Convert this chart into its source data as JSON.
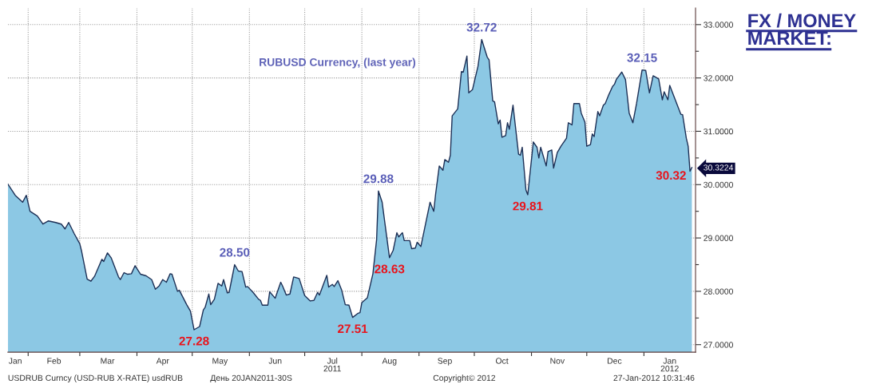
{
  "chart_data": {
    "type": "area",
    "title": "FX / MONEY\nMARKET:",
    "subtitle": "RUBUSD Currency, (last year)",
    "x": [
      "2011-01-21",
      "2011-01-25",
      "2011-01-29",
      "2011-01-31",
      "2011-02-02",
      "2011-02-06",
      "2011-02-09",
      "2011-02-12",
      "2011-02-16",
      "2011-02-19",
      "2011-02-21",
      "2011-02-23",
      "2011-02-26",
      "2011-03-01",
      "2011-03-02",
      "2011-03-05",
      "2011-03-07",
      "2011-03-09",
      "2011-03-13",
      "2011-03-14",
      "2011-03-16",
      "2011-03-18",
      "2011-03-22",
      "2011-03-23",
      "2011-03-25",
      "2011-03-27",
      "2011-03-29",
      "2011-03-31",
      "2011-04-03",
      "2011-04-06",
      "2011-04-09",
      "2011-04-11",
      "2011-04-13",
      "2011-04-15",
      "2011-04-17",
      "2011-04-19",
      "2011-04-20",
      "2011-04-23",
      "2011-04-24",
      "2011-04-28",
      "2011-04-30",
      "2011-05-02",
      "2011-05-05",
      "2011-05-07",
      "2011-05-08",
      "2011-05-10",
      "2011-05-11",
      "2011-05-13",
      "2011-05-15",
      "2011-05-17",
      "2011-05-18",
      "2011-05-20",
      "2011-05-21",
      "2011-05-24",
      "2011-05-26",
      "2011-05-28",
      "2011-05-30",
      "2011-05-31",
      "2011-06-03",
      "2011-06-06",
      "2011-06-07",
      "2011-06-08",
      "2011-06-11",
      "2011-06-12",
      "2011-06-15",
      "2011-06-18",
      "2011-06-19",
      "2011-06-21",
      "2011-06-23",
      "2011-06-25",
      "2011-06-28",
      "2011-07-01",
      "2011-07-04",
      "2011-07-06",
      "2011-07-08",
      "2011-07-09",
      "2011-07-13",
      "2011-07-14",
      "2011-07-16",
      "2011-07-17",
      "2011-07-19",
      "2011-07-21",
      "2011-07-23",
      "2011-07-25",
      "2011-07-27",
      "2011-07-30",
      "2011-07-31",
      "2011-08-01",
      "2011-08-04",
      "2011-08-07",
      "2011-08-09",
      "2011-08-10",
      "2011-08-12",
      "2011-08-16",
      "2011-08-18",
      "2011-08-20",
      "2011-08-21",
      "2011-08-23",
      "2011-08-24",
      "2011-08-27",
      "2011-08-28",
      "2011-08-30",
      "2011-08-31",
      "2011-09-02",
      "2011-09-04",
      "2011-09-07",
      "2011-09-09",
      "2011-09-10",
      "2011-09-12",
      "2011-09-14",
      "2011-09-15",
      "2011-09-17",
      "2011-09-18",
      "2011-09-19",
      "2011-09-22",
      "2011-09-24",
      "2011-09-25",
      "2011-09-27",
      "2011-09-28",
      "2011-09-30",
      "2011-10-03",
      "2011-10-05",
      "2011-10-08",
      "2011-10-09",
      "2011-10-11",
      "2011-10-12",
      "2011-10-14",
      "2011-10-15",
      "2011-10-16",
      "2011-10-18",
      "2011-10-19",
      "2011-10-20",
      "2011-10-22",
      "2011-10-25",
      "2011-10-26",
      "2011-10-27",
      "2011-10-29",
      "2011-10-30",
      "2011-11-02",
      "2011-11-04",
      "2011-11-05",
      "2011-11-06",
      "2011-11-09",
      "2011-11-10",
      "2011-11-12",
      "2011-11-13",
      "2011-11-15",
      "2011-11-17",
      "2011-11-20",
      "2011-11-21",
      "2011-11-23",
      "2011-11-24",
      "2011-11-27",
      "2011-11-28",
      "2011-11-30",
      "2011-12-01",
      "2011-12-03",
      "2011-12-04",
      "2011-12-05",
      "2011-12-07",
      "2011-12-08",
      "2011-12-10",
      "2011-12-11",
      "2011-12-13",
      "2011-12-15",
      "2011-12-16",
      "2011-12-17",
      "2011-12-20",
      "2011-12-22",
      "2011-12-24",
      "2011-12-26",
      "2011-12-28",
      "2011-12-31",
      "2012-01-02",
      "2012-01-04",
      "2012-01-06",
      "2012-01-09",
      "2012-01-11",
      "2012-01-12",
      "2012-01-14",
      "2012-01-15",
      "2012-01-18",
      "2012-01-21",
      "2012-01-22",
      "2012-01-24",
      "2012-01-25",
      "2012-01-26",
      "2012-01-27"
    ],
    "series": [
      {
        "color": "#8cc8e4",
        "values": [
          30.01,
          29.8,
          29.67,
          29.8,
          29.5,
          29.41,
          29.26,
          29.32,
          29.29,
          29.26,
          29.17,
          29.29,
          29.08,
          28.89,
          28.75,
          28.23,
          28.19,
          28.28,
          28.6,
          28.56,
          28.72,
          28.63,
          28.27,
          28.22,
          28.35,
          28.32,
          28.33,
          28.48,
          28.32,
          28.29,
          28.22,
          28.04,
          28.1,
          28.22,
          28.17,
          28.33,
          28.32,
          28.0,
          28.02,
          27.75,
          27.63,
          27.28,
          27.34,
          27.65,
          27.7,
          27.95,
          27.75,
          27.85,
          28.15,
          28.1,
          28.22,
          27.97,
          27.98,
          28.5,
          28.38,
          28.37,
          28.08,
          28.09,
          27.98,
          27.85,
          27.83,
          27.74,
          27.74,
          27.99,
          27.87,
          28.17,
          28.1,
          27.93,
          27.95,
          28.27,
          28.24,
          27.92,
          27.82,
          27.83,
          27.98,
          27.93,
          28.3,
          28.08,
          28.13,
          28.09,
          28.2,
          28.03,
          27.75,
          27.74,
          27.51,
          27.59,
          27.6,
          27.79,
          27.88,
          28.33,
          28.97,
          29.88,
          29.67,
          28.63,
          28.77,
          29.1,
          29.02,
          29.1,
          28.95,
          28.95,
          28.8,
          28.81,
          28.92,
          28.84,
          29.17,
          29.67,
          29.5,
          29.82,
          30.35,
          30.27,
          30.47,
          30.42,
          30.55,
          31.29,
          31.42,
          32.12,
          32.11,
          32.41,
          31.72,
          31.78,
          32.22,
          32.72,
          32.39,
          32.34,
          31.57,
          31.55,
          31.14,
          31.21,
          30.89,
          30.92,
          31.16,
          31.04,
          31.49,
          30.57,
          30.55,
          30.7,
          29.9,
          29.81,
          30.8,
          30.7,
          30.5,
          30.7,
          30.35,
          30.62,
          30.65,
          30.31,
          30.6,
          30.72,
          30.87,
          31.16,
          31.12,
          31.52,
          31.52,
          31.34,
          31.17,
          30.72,
          30.75,
          30.95,
          30.9,
          31.37,
          31.29,
          31.49,
          31.52,
          31.69,
          31.84,
          31.88,
          31.97,
          32.11,
          31.97,
          31.34,
          31.16,
          31.52,
          32.15,
          32.14,
          31.72,
          32.04,
          31.98,
          31.59,
          31.74,
          31.59,
          31.86,
          31.59,
          31.32,
          31.31,
          30.87,
          30.72,
          30.25,
          30.32
        ]
      }
    ],
    "xlim": [
      "2011-01-21",
      "2012-01-29"
    ],
    "xticks": [
      {
        "value": "2011-01-25",
        "label": "Jan"
      },
      {
        "value": "2011-02-01",
        "label": null
      },
      {
        "value": "2011-02-15",
        "label": "Feb"
      },
      {
        "value": "2011-03-01",
        "label": null
      },
      {
        "value": "2011-03-16",
        "label": "Mar"
      },
      {
        "value": "2011-04-01",
        "label": null
      },
      {
        "value": "2011-04-15",
        "label": "Apr"
      },
      {
        "value": "2011-05-01",
        "label": null
      },
      {
        "value": "2011-05-16",
        "label": "May"
      },
      {
        "value": "2011-06-01",
        "label": null
      },
      {
        "value": "2011-06-15",
        "label": "Jun"
      },
      {
        "value": "2011-07-01",
        "label": null
      },
      {
        "value": "2011-07-16",
        "label": "Jul\n2011"
      },
      {
        "value": "2011-08-01",
        "label": null
      },
      {
        "value": "2011-08-16",
        "label": "Aug"
      },
      {
        "value": "2011-09-01",
        "label": null
      },
      {
        "value": "2011-09-15",
        "label": "Sep"
      },
      {
        "value": "2011-10-01",
        "label": null
      },
      {
        "value": "2011-10-16",
        "label": "Oct"
      },
      {
        "value": "2011-11-01",
        "label": null
      },
      {
        "value": "2011-11-15",
        "label": "Nov"
      },
      {
        "value": "2011-12-01",
        "label": null
      },
      {
        "value": "2011-12-16",
        "label": "Dec"
      },
      {
        "value": "2012-01-01",
        "label": null
      },
      {
        "value": "2012-01-15",
        "label": "Jan\n2012"
      }
    ],
    "ylim": [
      26.86,
      33.31
    ],
    "yticks": [
      {
        "value": 27,
        "label": "27.0000"
      },
      {
        "value": 27.5,
        "label": null
      },
      {
        "value": 28,
        "label": "28.0000"
      },
      {
        "value": 28.5,
        "label": null
      },
      {
        "value": 29,
        "label": "29.0000"
      },
      {
        "value": 29.5,
        "label": null
      },
      {
        "value": 30,
        "label": "30.0000"
      },
      {
        "value": 30.3224,
        "label": "30.3224"
      },
      {
        "value": 30.5,
        "label": null
      },
      {
        "value": 31,
        "label": "31.0000"
      },
      {
        "value": 31.5,
        "label": null
      },
      {
        "value": 32,
        "label": "32.0000"
      },
      {
        "value": 32.5,
        "label": null
      },
      {
        "value": 33,
        "label": "33.0000"
      }
    ],
    "grid": true,
    "annotations": [
      {
        "text": "29.88",
        "x": "2011-08-10",
        "y": 29.88
      },
      {
        "text": "28.50",
        "x": "2011-05-24",
        "y": 28.5
      },
      {
        "text": "32.72",
        "x": "2011-10-05",
        "y": 32.72
      },
      {
        "text": "32.15",
        "x": "2011-12-31",
        "y": 32.15
      },
      {
        "text": "27.28",
        "x": "2011-05-02",
        "y": 27.28
      },
      {
        "text": "27.51",
        "x": "2011-07-27",
        "y": 27.51
      },
      {
        "text": "28.63",
        "x": "2011-08-16",
        "y": 28.63
      },
      {
        "text": "29.81",
        "x": "2011-10-30",
        "y": 29.81
      },
      {
        "text": "30.32",
        "x": "2012-01-27",
        "y": 30.32
      },
      "USDRUB Curncy (USD-RUB X-RATE) usdRUB",
      "День 20JAN2011-30S",
      "Copyright© 2012",
      "27-Jan-2012 10:31:46"
    ]
  }
}
